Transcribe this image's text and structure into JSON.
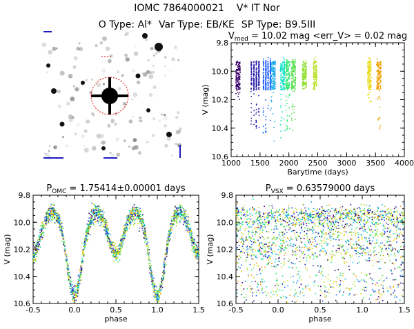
{
  "header": {
    "line1_id": "IOMC 7864000021",
    "line1_name": "V* IT Nor",
    "line2_otype": "O Type: Al*",
    "line2_vartype": "Var Type: EB/KE",
    "line2_sptype": "SP Type: B9.5III"
  },
  "thumbnail": {},
  "chart_data": [
    {
      "type": "scatter",
      "title_main": "V",
      "title_sub": "med",
      "title_rest": " = 10.02 mag <err_V> = 0.02 mag",
      "xlabel": "Barytime (days)",
      "ylabel": "V (mag)",
      "xlim": [
        1000,
        4000
      ],
      "ylim": [
        10.6,
        9.8
      ],
      "xticks": [
        1000,
        1500,
        2000,
        2500,
        3000,
        3500,
        4000
      ],
      "yticks": [
        9.8,
        10.0,
        10.2,
        10.4,
        10.6
      ],
      "series": [
        {
          "color": "#3a006a",
          "x_range": [
            1090,
            1150
          ],
          "y_range": [
            9.95,
            10.22
          ]
        },
        {
          "color": "#2a1fa8",
          "x_range": [
            1350,
            1480
          ],
          "y_range": [
            9.92,
            10.4
          ]
        },
        {
          "color": "#1a5aff",
          "x_range": [
            1560,
            1680
          ],
          "y_range": [
            9.9,
            10.45
          ]
        },
        {
          "color": "#12a8e8",
          "x_range": [
            1700,
            1760
          ],
          "y_range": [
            9.9,
            10.5
          ]
        },
        {
          "color": "#10e0c8",
          "x_range": [
            1860,
            1920
          ],
          "y_range": [
            9.9,
            10.48
          ]
        },
        {
          "color": "#30e870",
          "x_range": [
            1950,
            2010
          ],
          "y_range": [
            9.88,
            10.45
          ]
        },
        {
          "color": "#5ce050",
          "x_range": [
            2050,
            2110
          ],
          "y_range": [
            9.88,
            10.42
          ]
        },
        {
          "color": "#90e030",
          "x_range": [
            2240,
            2300
          ],
          "y_range": [
            9.92,
            10.1
          ]
        },
        {
          "color": "#b8e020",
          "x_range": [
            2430,
            2480
          ],
          "y_range": [
            9.9,
            10.06
          ]
        },
        {
          "color": "#e8d800",
          "x_range": [
            3370,
            3420
          ],
          "y_range": [
            9.9,
            10.22
          ]
        },
        {
          "color": "#f0a000",
          "x_range": [
            3530,
            3590
          ],
          "y_range": [
            9.9,
            10.45
          ]
        }
      ]
    },
    {
      "type": "scatter",
      "title_main": "P",
      "title_sub": "OMC",
      "title_rest": " = 1.75414±0.00001 days",
      "xlabel": "phase",
      "ylabel": "V (mag)",
      "xlim": [
        -0.5,
        1.5
      ],
      "ylim": [
        10.6,
        9.8
      ],
      "xticks": [
        -0.5,
        0.0,
        0.5,
        1.0,
        1.5
      ],
      "yticks": [
        9.8,
        10.0,
        10.2,
        10.4,
        10.6
      ],
      "model": {
        "primary_min_phase": 0.0,
        "primary_depth_mag": 10.48,
        "secondary_min_phase": 0.5,
        "secondary_depth_mag": 10.18,
        "max_mag": 9.92
      }
    },
    {
      "type": "scatter",
      "title_main": "P",
      "title_sub": "VSX",
      "title_rest": " = 0.63579000 days",
      "xlabel": "phase",
      "ylabel": "V (mag)",
      "xlim": [
        -0.5,
        1.5
      ],
      "ylim": [
        10.6,
        9.8
      ],
      "xticks": [
        -0.5,
        0.0,
        0.5,
        1.0,
        1.5
      ],
      "yticks": [
        9.8,
        10.0,
        10.2,
        10.4,
        10.6
      ]
    }
  ],
  "palette": [
    "#3a006a",
    "#2a1fa8",
    "#1a5aff",
    "#12a8e8",
    "#10e0c8",
    "#30e870",
    "#5ce050",
    "#90e030",
    "#b8e020",
    "#e8d800",
    "#f0a000"
  ]
}
